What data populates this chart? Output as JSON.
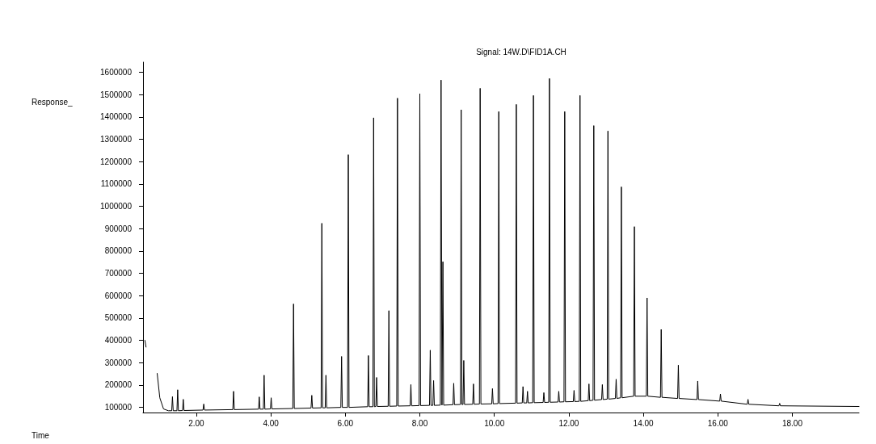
{
  "chart_data": {
    "type": "line",
    "title": "Signal: 14W.D\\FID1A.CH",
    "annotations": [
      "Time"
    ],
    "ylabel": "Response_",
    "xlim": [
      0.57,
      19.79
    ],
    "ylim": [
      77000,
      1645000
    ],
    "xticks": [
      {
        "value": 2,
        "label": "2.00"
      },
      {
        "value": 4,
        "label": "4.00"
      },
      {
        "value": 6,
        "label": "6.00"
      },
      {
        "value": 8,
        "label": "8.00"
      },
      {
        "value": 10,
        "label": "10.00"
      },
      {
        "value": 12,
        "label": "12.00"
      },
      {
        "value": 14,
        "label": "14.00"
      },
      {
        "value": 16,
        "label": "16.00"
      },
      {
        "value": 18,
        "label": "18.00"
      }
    ],
    "yticks": [
      100000,
      200000,
      300000,
      400000,
      500000,
      600000,
      700000,
      800000,
      900000,
      1000000,
      1100000,
      1200000,
      1300000,
      1400000,
      1500000,
      1600000
    ],
    "grid": false,
    "marker": "none",
    "line_style": "solid",
    "series": [
      {
        "color": "#000000",
        "x": [
          0.62,
          0.65,
          0.67,
          0.92,
          0.95,
          1.02,
          1.12,
          1.25,
          1.34,
          1.36,
          1.38,
          1.48,
          1.5,
          1.52,
          1.63,
          1.65,
          1.67,
          2.18,
          2.2,
          2.22,
          2.98,
          3.0,
          3.02,
          3.67,
          3.69,
          3.71,
          3.8,
          3.82,
          3.84,
          3.99,
          4.01,
          4.03,
          4.59,
          4.61,
          4.63,
          5.08,
          5.1,
          5.12,
          5.35,
          5.37,
          5.39,
          5.46,
          5.48,
          5.5,
          5.88,
          5.9,
          5.92,
          6.06,
          6.08,
          6.1,
          6.6,
          6.62,
          6.64,
          6.74,
          6.76,
          6.78,
          6.82,
          6.84,
          6.86,
          7.15,
          7.17,
          7.19,
          7.38,
          7.4,
          7.42,
          7.74,
          7.76,
          7.78,
          7.98,
          8.0,
          8.02,
          8.26,
          8.28,
          8.3,
          8.35,
          8.37,
          8.39,
          8.55,
          8.57,
          8.595,
          8.62,
          8.64,
          8.89,
          8.91,
          8.93,
          9.09,
          9.11,
          9.13,
          9.16,
          9.18,
          9.2,
          9.42,
          9.44,
          9.46,
          9.6,
          9.62,
          9.64,
          9.93,
          9.95,
          9.97,
          10.1,
          10.12,
          10.14,
          10.57,
          10.59,
          10.61,
          10.75,
          10.77,
          10.79,
          10.87,
          10.89,
          10.91,
          11.03,
          11.05,
          11.07,
          11.31,
          11.33,
          11.35,
          11.46,
          11.48,
          11.5,
          11.71,
          11.73,
          11.75,
          11.87,
          11.89,
          11.91,
          12.12,
          12.14,
          12.16,
          12.28,
          12.3,
          12.32,
          12.52,
          12.54,
          12.56,
          12.65,
          12.67,
          12.69,
          12.88,
          12.9,
          12.92,
          13.03,
          13.05,
          13.07,
          13.25,
          13.27,
          13.29,
          13.39,
          13.41,
          13.43,
          13.74,
          13.76,
          13.78,
          14.08,
          14.1,
          14.12,
          14.46,
          14.48,
          14.5,
          14.92,
          14.94,
          14.96,
          15.44,
          15.46,
          15.48,
          16.05,
          16.07,
          16.09,
          16.79,
          16.81,
          16.83,
          17.64,
          17.66,
          17.68,
          19.79
        ],
        "values": [
          400000,
          370000,
          null,
          null,
          252000,
          143000,
          93000,
          85000,
          85000,
          148000,
          85000,
          85000,
          179000,
          85000,
          86000,
          136000,
          86000,
          88000,
          115000,
          88000,
          90000,
          172000,
          90000,
          92000,
          147000,
          92000,
          92000,
          244000,
          92000,
          93000,
          143000,
          93000,
          95000,
          563000,
          95000,
          97000,
          154000,
          97000,
          98000,
          924000,
          98000,
          98000,
          244000,
          98000,
          100000,
          328000,
          100000,
          100000,
          1231000,
          100000,
          103000,
          332000,
          103000,
          103000,
          1396000,
          103000,
          104000,
          234000,
          104000,
          105000,
          533000,
          105000,
          106000,
          1484000,
          106000,
          107000,
          202000,
          107000,
          108000,
          1504000,
          108000,
          109000,
          356000,
          109000,
          109000,
          220000,
          109000,
          110000,
          1565000,
          110000,
          752000,
          110000,
          112000,
          208000,
          112000,
          113000,
          1432000,
          113000,
          113000,
          310000,
          113000,
          114000,
          205000,
          114000,
          115000,
          1528000,
          115000,
          116000,
          184000,
          116000,
          117000,
          1424000,
          117000,
          119000,
          1456000,
          119000,
          120000,
          193000,
          120000,
          120000,
          172000,
          120000,
          121000,
          1496000,
          121000,
          122000,
          166000,
          122000,
          123000,
          1572000,
          123000,
          124000,
          172000,
          124000,
          125000,
          1424000,
          125000,
          126000,
          176000,
          126000,
          127000,
          1496000,
          127000,
          130000,
          205000,
          130000,
          132000,
          1361000,
          132000,
          135000,
          202000,
          135000,
          137000,
          1337000,
          137000,
          140000,
          226000,
          140000,
          143000,
          1087000,
          143000,
          150000,
          909000,
          150000,
          150000,
          590000,
          150000,
          145000,
          449000,
          145000,
          140000,
          289000,
          140000,
          135000,
          218000,
          135000,
          128000,
          160000,
          128000,
          114000,
          136000,
          114000,
          107000,
          118000,
          107000,
          104000
        ]
      }
    ]
  }
}
